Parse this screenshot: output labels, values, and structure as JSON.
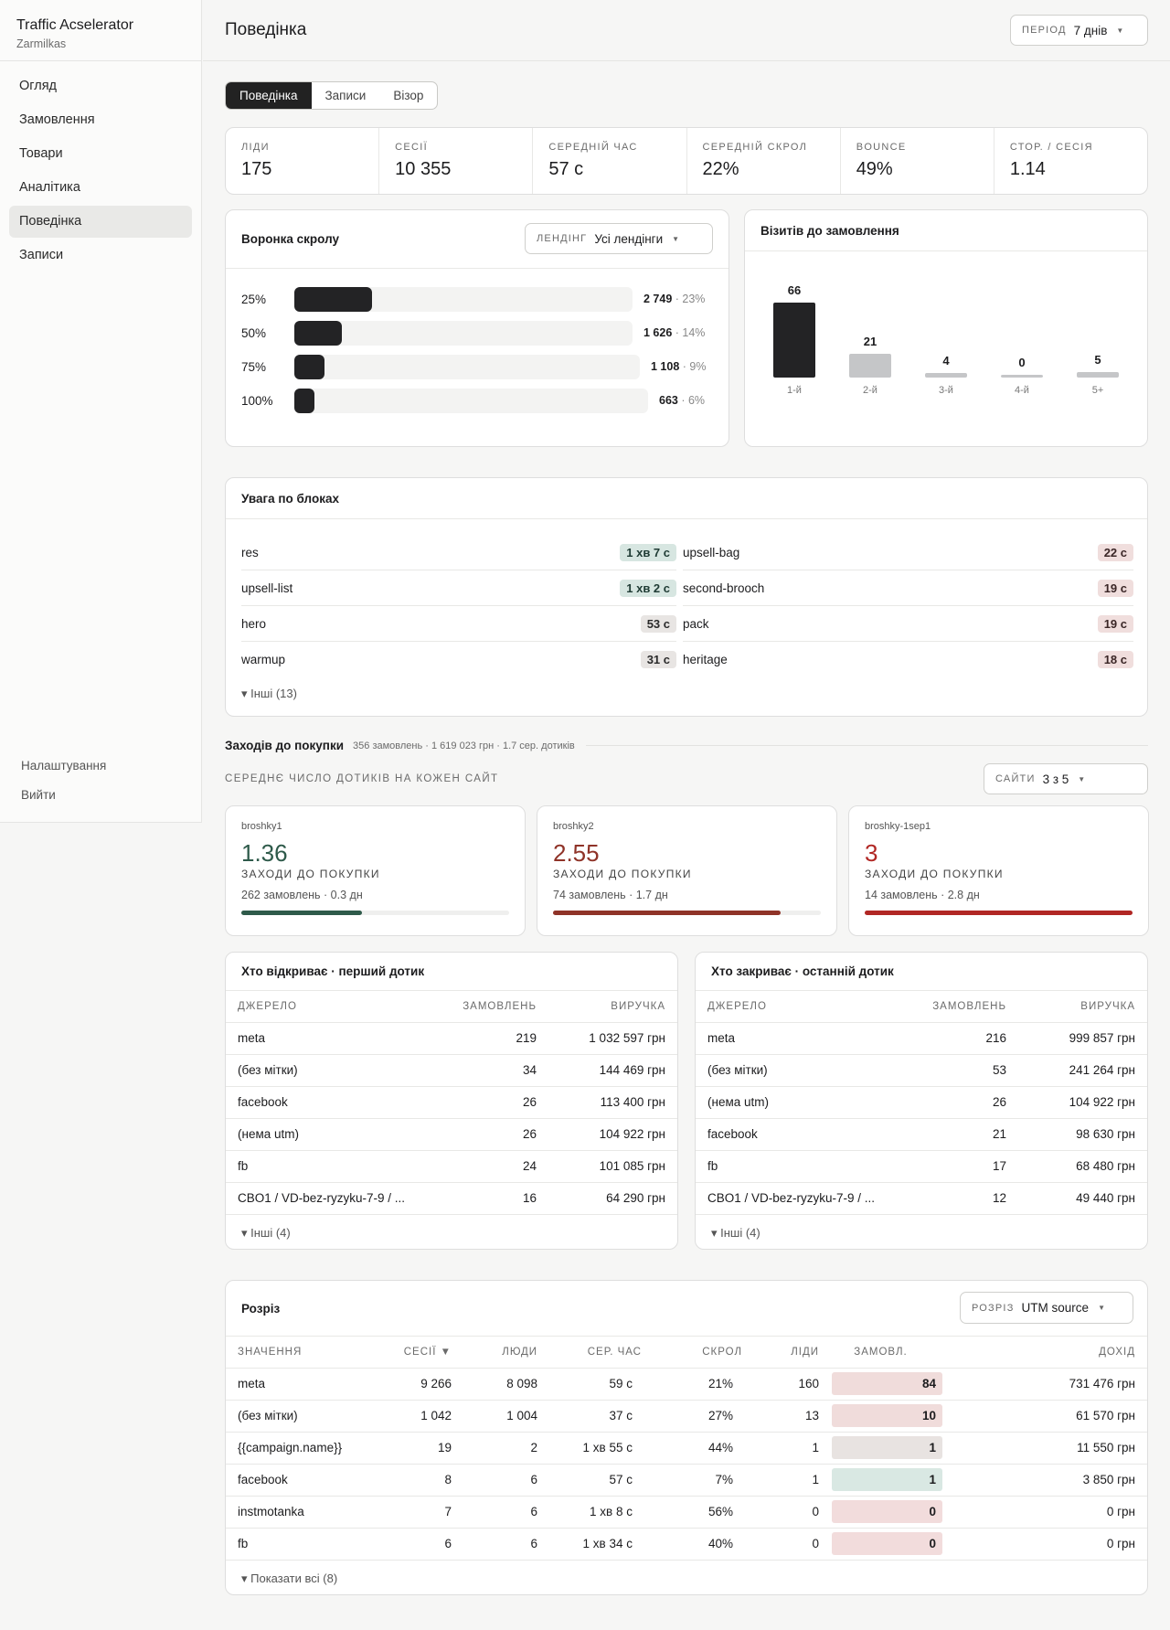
{
  "sidebar": {
    "brand_title": "Traffic Acselerator",
    "brand_sub": "Zarmilkas",
    "items": [
      {
        "label": "Огляд"
      },
      {
        "label": "Замовлення"
      },
      {
        "label": "Товари"
      },
      {
        "label": "Аналітика"
      },
      {
        "label": "Поведінка"
      },
      {
        "label": "Записи"
      }
    ],
    "settings": "Налаштування",
    "logout": "Вийти"
  },
  "header": {
    "title": "Поведінка",
    "period_label": "Період",
    "period_value": "7 днів"
  },
  "tabs": [
    "Поведінка",
    "Записи",
    "Візор"
  ],
  "stats": [
    {
      "label": "Ліди",
      "value": "175"
    },
    {
      "label": "Сесії",
      "value": "10 355"
    },
    {
      "label": "Середній час",
      "value": "57 с"
    },
    {
      "label": "Середній скрол",
      "value": "22%"
    },
    {
      "label": "Bounce",
      "value": "49%"
    },
    {
      "label": "Стор. / сесія",
      "value": "1.14"
    }
  ],
  "funnel": {
    "title": "Воронка скролу",
    "landing_label": "Лендінг",
    "landing_value": "Усі лендінги",
    "rows": [
      {
        "pct": "25%",
        "count": "2 749",
        "share": "· 23%",
        "fraction": 0.23
      },
      {
        "pct": "50%",
        "count": "1 626",
        "share": "· 14%",
        "fraction": 0.14
      },
      {
        "pct": "75%",
        "count": "1 108",
        "share": "· 9%",
        "fraction": 0.09
      },
      {
        "pct": "100%",
        "count": "663",
        "share": "· 6%",
        "fraction": 0.06
      }
    ]
  },
  "visits": {
    "title": "Візитів до замовлення"
  },
  "chart_data": {
    "type": "bar",
    "categories": [
      "1-й",
      "2-й",
      "3-й",
      "4-й",
      "5+"
    ],
    "values": [
      66,
      21,
      4,
      0,
      5
    ],
    "title": "Візитів до замовлення",
    "colors": [
      "#232325",
      "#c5c6c8",
      "#c5c6c8",
      "#c5c6c8",
      "#c5c6c8"
    ]
  },
  "attention": {
    "title": "Увага по блоках",
    "left": [
      {
        "name": "res",
        "time": "1 хв 7 с",
        "tone": "g"
      },
      {
        "name": "upsell-list",
        "time": "1 хв 2 с",
        "tone": "g"
      },
      {
        "name": "hero",
        "time": "53 с",
        "tone": "n"
      },
      {
        "name": "warmup",
        "time": "31 с",
        "tone": "n"
      }
    ],
    "right": [
      {
        "name": "upsell-bag",
        "time": "22 с",
        "tone": "r"
      },
      {
        "name": "second-brooch",
        "time": "19 с",
        "tone": "r"
      },
      {
        "name": "pack",
        "time": "19 с",
        "tone": "r"
      },
      {
        "name": "heritage",
        "time": "18 с",
        "tone": "r"
      }
    ],
    "more": "▾ Інші (13)"
  },
  "journey": {
    "title": "Заходів до покупки",
    "subtitle": "356 замовлень · 1 619 023 грн · 1.7 сер. дотиків",
    "caption": "Середнє число дотиків на кожен сайт",
    "sites_label": "Сайти",
    "sites_value": "3 з 5",
    "sites": [
      {
        "name": "broshky1",
        "value": "1.36",
        "cap": "заходи до покупки",
        "meta": "262 замовлень · 0.3 дн",
        "color": "#2e5a4a",
        "fill": 0.45
      },
      {
        "name": "broshky2",
        "value": "2.55",
        "cap": "заходи до покупки",
        "meta": "74 замовлень · 1.7 дн",
        "color": "#8f3328",
        "fill": 0.85
      },
      {
        "name": "broshky-1sep1",
        "value": "3",
        "cap": "заходи до покупки",
        "meta": "14 замовлень · 2.8 дн",
        "color": "#b12724",
        "fill": 1.0
      }
    ]
  },
  "first_touch": {
    "title": "Хто відкриває · перший дотик",
    "cols": [
      "Джерело",
      "Замовлень",
      "Виручка"
    ],
    "rows": [
      [
        "meta",
        "219",
        "1 032 597 грн"
      ],
      [
        "(без мітки)",
        "34",
        "144 469 грн"
      ],
      [
        "facebook",
        "26",
        "113 400 грн"
      ],
      [
        "(нема utm)",
        "26",
        "104 922 грн"
      ],
      [
        "fb",
        "24",
        "101 085 грн"
      ],
      [
        "CBO1 / VD-bez-ryzyku-7-9 / ...",
        "16",
        "64 290 грн"
      ]
    ],
    "more": "▾ Інші (4)"
  },
  "last_touch": {
    "title": "Хто закриває · останній дотик",
    "cols": [
      "Джерело",
      "Замовлень",
      "Виручка"
    ],
    "rows": [
      [
        "meta",
        "216",
        "999 857 грн"
      ],
      [
        "(без мітки)",
        "53",
        "241 264 грн"
      ],
      [
        "(нема utm)",
        "26",
        "104 922 грн"
      ],
      [
        "facebook",
        "21",
        "98 630 грн"
      ],
      [
        "fb",
        "17",
        "68 480 грн"
      ],
      [
        "CBO1 / VD-bez-ryzyku-7-9 / ...",
        "12",
        "49 440 грн"
      ]
    ],
    "more": "▾ Інші (4)"
  },
  "slice": {
    "title": "Розріз",
    "select_label": "Розріз",
    "select_value": "UTM source",
    "cols": [
      "Значення",
      "Сесії ▼",
      "Люди",
      "Сер. час",
      "Скрол",
      "Ліди",
      "Замовл.",
      "Дохід"
    ],
    "rows": [
      {
        "v": "meta",
        "s": "9 266",
        "p": "8 098",
        "t": "59 с",
        "sc": "21%",
        "l": "160",
        "o": "84",
        "bg": "#f0dcdb",
        "r": "731 476 грн"
      },
      {
        "v": "(без мітки)",
        "s": "1 042",
        "p": "1 004",
        "t": "37 с",
        "sc": "27%",
        "l": "13",
        "o": "10",
        "bg": "#f0dcdb",
        "r": "61 570 грн"
      },
      {
        "v": "{{campaign.name}}",
        "s": "19",
        "p": "2",
        "t": "1 хв 55 с",
        "sc": "44%",
        "l": "1",
        "o": "1",
        "bg": "#e8e3e1",
        "r": "11 550 грн"
      },
      {
        "v": "facebook",
        "s": "8",
        "p": "6",
        "t": "57 с",
        "sc": "7%",
        "l": "1",
        "o": "1",
        "bg": "#d9e8e3",
        "r": "3 850 грн"
      },
      {
        "v": "instmotanka",
        "s": "7",
        "p": "6",
        "t": "1 хв 8 с",
        "sc": "56%",
        "l": "0",
        "o": "0",
        "bg": "#f2dcdc",
        "r": "0 грн"
      },
      {
        "v": "fb",
        "s": "6",
        "p": "6",
        "t": "1 хв 34 с",
        "sc": "40%",
        "l": "0",
        "o": "0",
        "bg": "#f2dcdc",
        "r": "0 грн"
      }
    ],
    "more": "▾ Показати всі (8)"
  }
}
